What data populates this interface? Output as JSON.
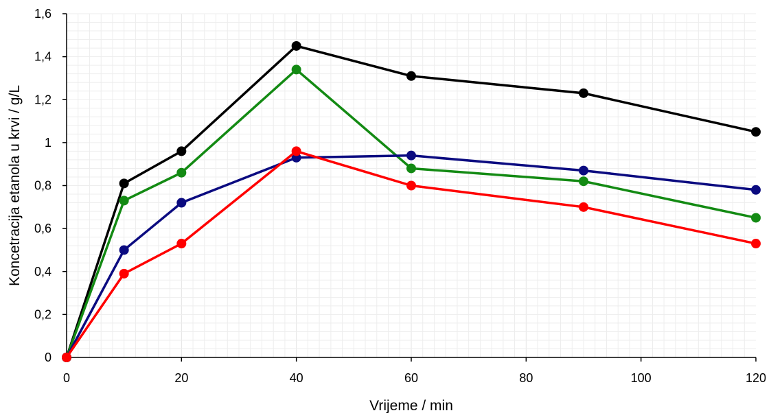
{
  "chart_data": {
    "type": "line",
    "title": "",
    "xlabel": "Vrijeme  / min",
    "ylabel": "Koncetracija etanola u krvi / g/L",
    "xlim": [
      0,
      120
    ],
    "ylim": [
      0,
      1.6
    ],
    "x_ticks": [
      0,
      20,
      40,
      60,
      80,
      100,
      120
    ],
    "x_tick_labels": [
      "0",
      "20",
      "40",
      "60",
      "80",
      "100",
      "120"
    ],
    "y_ticks": [
      0,
      0.2,
      0.4,
      0.6,
      0.8,
      1.0,
      1.2,
      1.4,
      1.6
    ],
    "y_tick_labels": [
      "0",
      "0,2",
      "0,4",
      "0,6",
      "0,8",
      "1",
      "1,2",
      "1,4",
      "1,6"
    ],
    "grid": true,
    "legend": "none",
    "x": [
      0,
      10,
      20,
      40,
      60,
      90,
      120
    ],
    "series": [
      {
        "color": "#000000",
        "values": [
          0,
          0.81,
          0.96,
          1.45,
          1.31,
          1.23,
          1.05
        ]
      },
      {
        "color": "#138a13",
        "values": [
          0,
          0.73,
          0.86,
          1.34,
          0.88,
          0.82,
          0.65
        ]
      },
      {
        "color": "#0b0b80",
        "values": [
          0,
          0.5,
          0.72,
          0.93,
          0.94,
          0.87,
          0.78
        ]
      },
      {
        "color": "#ff0000",
        "values": [
          0,
          0.39,
          0.53,
          0.96,
          0.8,
          0.7,
          0.53
        ]
      }
    ]
  }
}
